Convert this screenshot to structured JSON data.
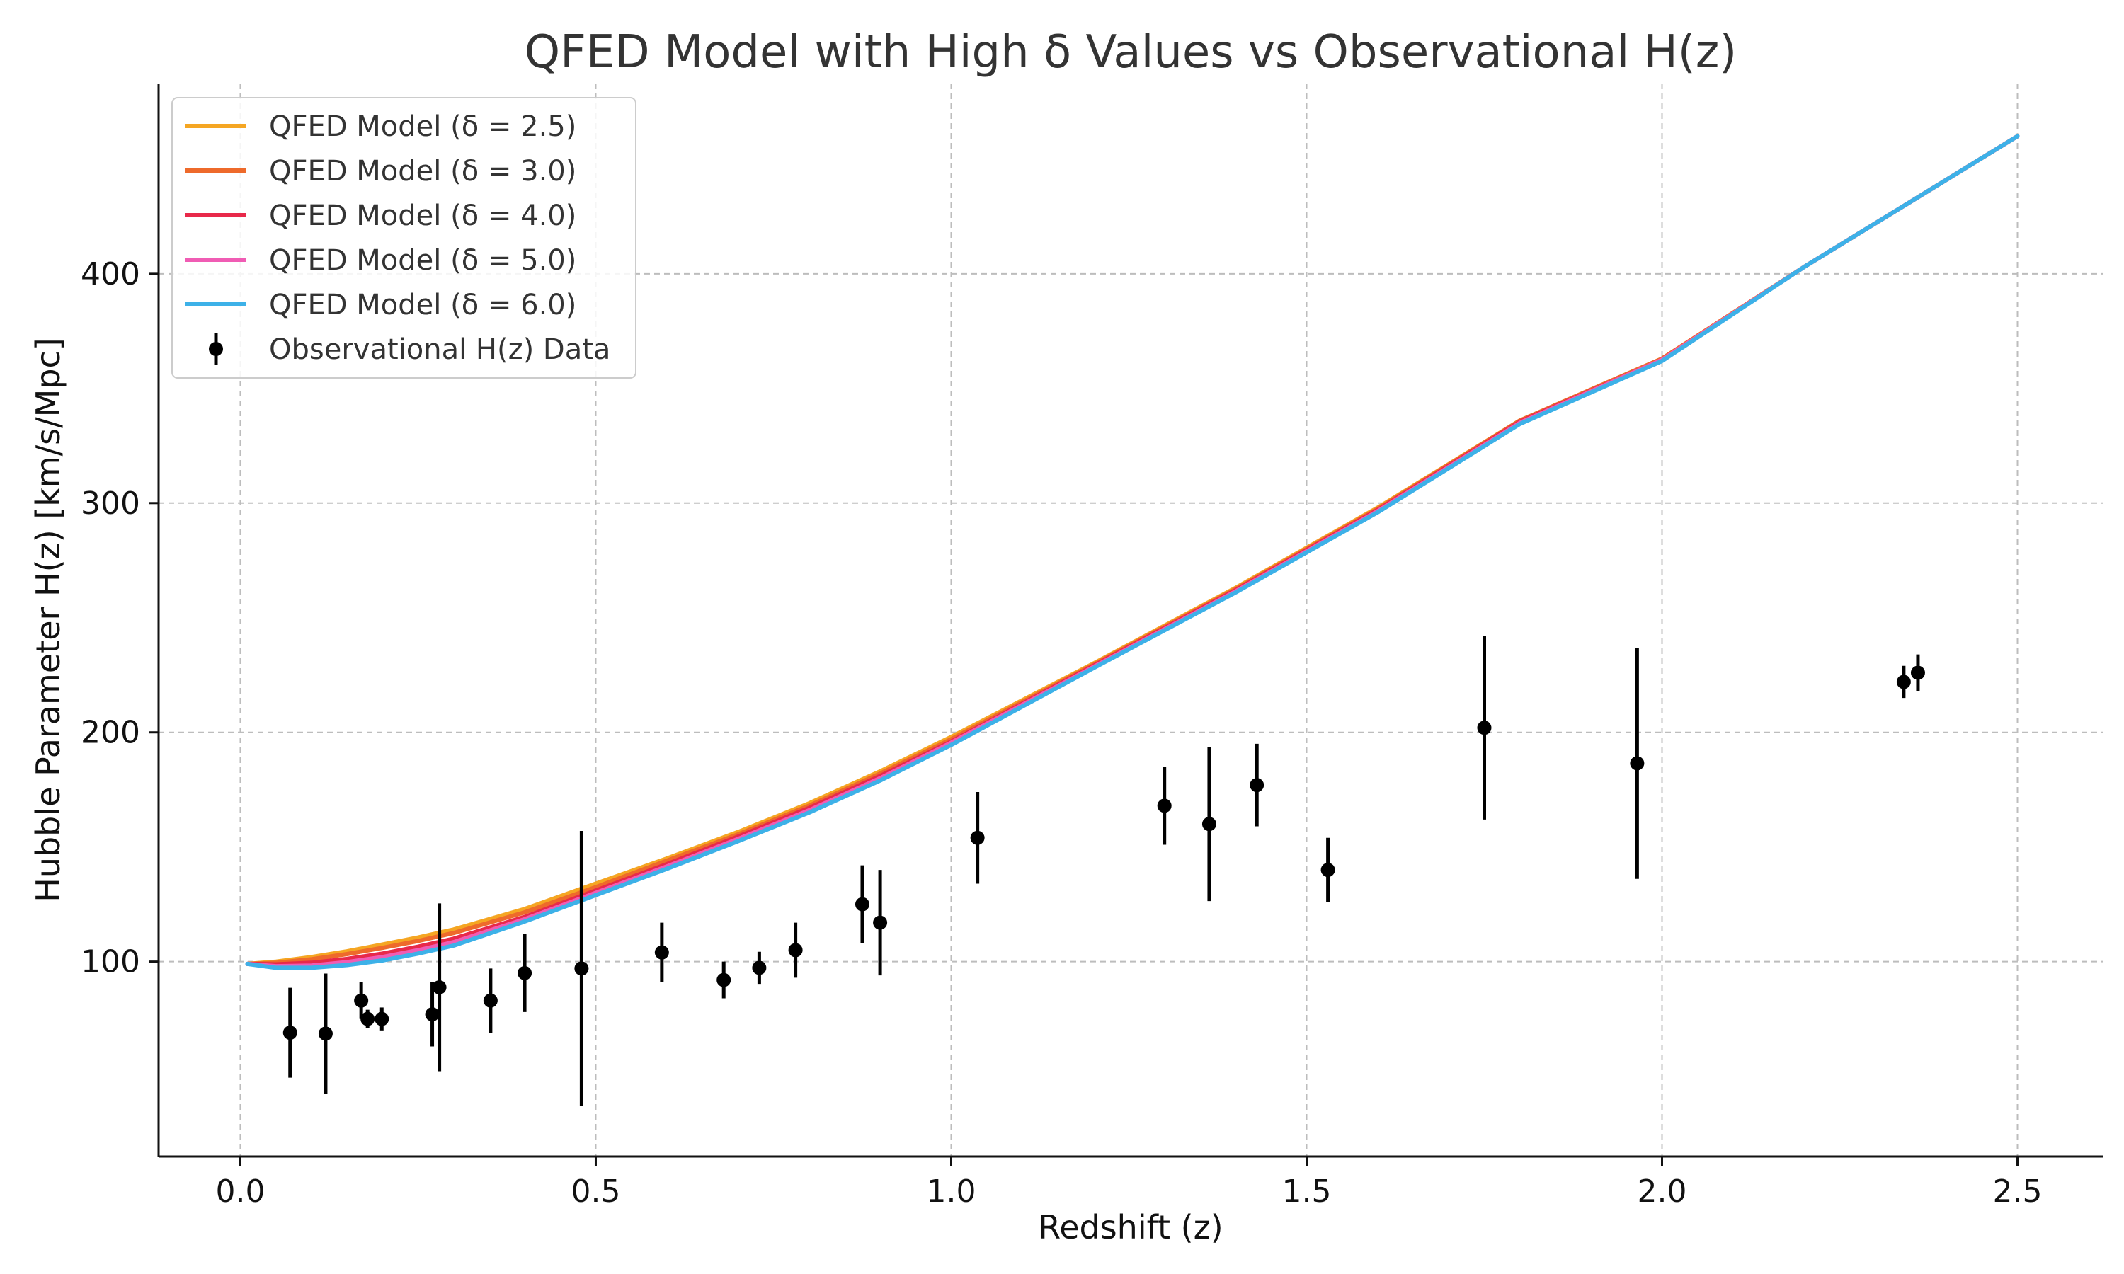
{
  "chart_data": {
    "type": "line",
    "title": "QFED Model with High δ Values vs Observational H(z)",
    "xlabel": "Redshift (z)",
    "ylabel": "Hubble Parameter H(z) [km/s/Mpc]",
    "xlim": [
      -0.115,
      2.62
    ],
    "ylim": [
      15,
      483
    ],
    "x_ticks": [
      0.0,
      0.5,
      1.0,
      1.5,
      2.0,
      2.5
    ],
    "x_tick_labels": [
      "0.0",
      "0.5",
      "1.0",
      "1.5",
      "2.0",
      "2.5"
    ],
    "y_ticks": [
      100,
      200,
      300,
      400
    ],
    "y_tick_labels": [
      "100",
      "200",
      "300",
      "400"
    ],
    "grid": true,
    "legend_position": "top-left",
    "series": [
      {
        "name": "QFED Model (δ = 2.5)",
        "color": "#F5A623",
        "x": [
          0.01,
          0.05,
          0.1,
          0.15,
          0.2,
          0.25,
          0.3,
          0.4,
          0.5,
          0.6,
          0.7,
          0.8,
          0.9,
          1.0,
          1.2,
          1.4,
          1.6,
          1.8,
          2.0,
          2.2,
          2.5
        ],
        "y": [
          99,
          100,
          102,
          104.5,
          107.5,
          110.5,
          114,
          123,
          134,
          145,
          156.5,
          169,
          183,
          198,
          230,
          263,
          298,
          336,
          363,
          403,
          460
        ]
      },
      {
        "name": "QFED Model (δ = 3.0)",
        "color": "#EE6A2B",
        "x": [
          0.01,
          0.05,
          0.1,
          0.15,
          0.2,
          0.25,
          0.3,
          0.4,
          0.5,
          0.6,
          0.7,
          0.8,
          0.9,
          1.0,
          1.2,
          1.4,
          1.6,
          1.8,
          2.0,
          2.2,
          2.5
        ],
        "y": [
          99,
          99.5,
          101,
          103.3,
          106,
          109,
          112.5,
          121.5,
          132.5,
          144,
          155.5,
          168,
          182,
          197,
          229.5,
          262.5,
          297.5,
          336,
          363,
          403,
          460
        ]
      },
      {
        "name": "QFED Model (δ = 4.0)",
        "color": "#E8294A",
        "x": [
          0.01,
          0.05,
          0.1,
          0.15,
          0.2,
          0.25,
          0.3,
          0.4,
          0.5,
          0.6,
          0.7,
          0.8,
          0.9,
          1.0,
          1.2,
          1.4,
          1.6,
          1.8,
          2.0,
          2.2,
          2.5
        ],
        "y": [
          99,
          98.8,
          99.5,
          101.2,
          103.5,
          106.5,
          110,
          119.5,
          131,
          142.5,
          154.5,
          167,
          181,
          196,
          229,
          262,
          297,
          335.5,
          362.5,
          403,
          460
        ]
      },
      {
        "name": "QFED Model (δ = 5.0)",
        "color": "#F05CB4",
        "x": [
          0.01,
          0.05,
          0.1,
          0.15,
          0.2,
          0.25,
          0.3,
          0.4,
          0.5,
          0.6,
          0.7,
          0.8,
          0.9,
          1.0,
          1.2,
          1.4,
          1.6,
          1.8,
          2.0,
          2.2,
          2.5
        ],
        "y": [
          99,
          98,
          98.3,
          99.8,
          102,
          105,
          108.5,
          118.5,
          130,
          141.5,
          153.5,
          166,
          180,
          195.5,
          228.5,
          261.5,
          296.5,
          335,
          362.5,
          403,
          460
        ]
      },
      {
        "name": "QFED Model (δ = 6.0)",
        "color": "#3DB1E8",
        "x": [
          0.01,
          0.05,
          0.1,
          0.15,
          0.2,
          0.25,
          0.3,
          0.4,
          0.5,
          0.6,
          0.7,
          0.8,
          0.9,
          1.0,
          1.2,
          1.4,
          1.6,
          1.8,
          2.0,
          2.2,
          2.5
        ],
        "y": [
          99,
          97.3,
          97.3,
          98.5,
          100.5,
          103.5,
          107,
          117.5,
          129,
          140.5,
          152.5,
          165,
          179,
          194.5,
          228,
          261,
          296,
          334.5,
          362,
          403,
          460
        ]
      }
    ],
    "observations": {
      "name": "Observational H(z) Data",
      "color": "#000000",
      "x": [
        0.07,
        0.12,
        0.17,
        0.179,
        0.199,
        0.27,
        0.28,
        0.352,
        0.4,
        0.48,
        0.593,
        0.68,
        0.73,
        0.781,
        0.875,
        0.9,
        1.037,
        1.3,
        1.363,
        1.43,
        1.53,
        1.75,
        1.965,
        2.34,
        2.36
      ],
      "y": [
        69,
        68.6,
        83,
        75,
        75,
        77,
        88.8,
        83,
        95,
        97,
        104,
        92,
        97.3,
        105,
        125,
        117,
        154,
        168,
        160,
        177,
        140,
        202,
        186.5,
        222,
        226
      ],
      "err": [
        19.6,
        26.2,
        8,
        4,
        5,
        14,
        36.6,
        14,
        17,
        60,
        13,
        8,
        7,
        12,
        17,
        23,
        20,
        17,
        33.6,
        18,
        14,
        40,
        50.4,
        7,
        8
      ]
    }
  }
}
